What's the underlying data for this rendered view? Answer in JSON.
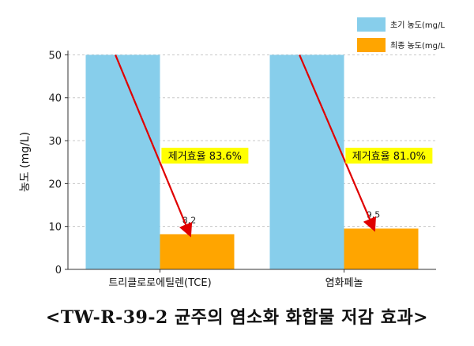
{
  "caption": "<TW-R-39-2 균주의 염소화 화합물 저감 효과>",
  "chart_data": {
    "type": "bar",
    "title": "",
    "xlabel": "",
    "ylabel": "농도 (mg/L)",
    "ylim": [
      0,
      51
    ],
    "yticks": [
      0,
      10,
      20,
      30,
      40,
      50
    ],
    "grid": true,
    "legend_position": "top-right",
    "categories": [
      "트리클로로에틸렌(TCE)",
      "염화페놀"
    ],
    "series": [
      {
        "name": "초기 농도(mg/L",
        "color": "#87ceeb",
        "values": [
          50,
          50
        ]
      },
      {
        "name": "최종 농도(mg/L",
        "color": "#ffa500",
        "values": [
          8.2,
          9.5
        ]
      }
    ],
    "bar_labels": [
      "8.2",
      "9.5"
    ],
    "annotations": [
      {
        "text": "제거효율 83.6%",
        "category": 0,
        "box_color": "#ffff00",
        "arrow_color": "#ff0000"
      },
      {
        "text": "제거효율 81.0%",
        "category": 1,
        "box_color": "#ffff00",
        "arrow_color": "#ff0000"
      }
    ]
  }
}
